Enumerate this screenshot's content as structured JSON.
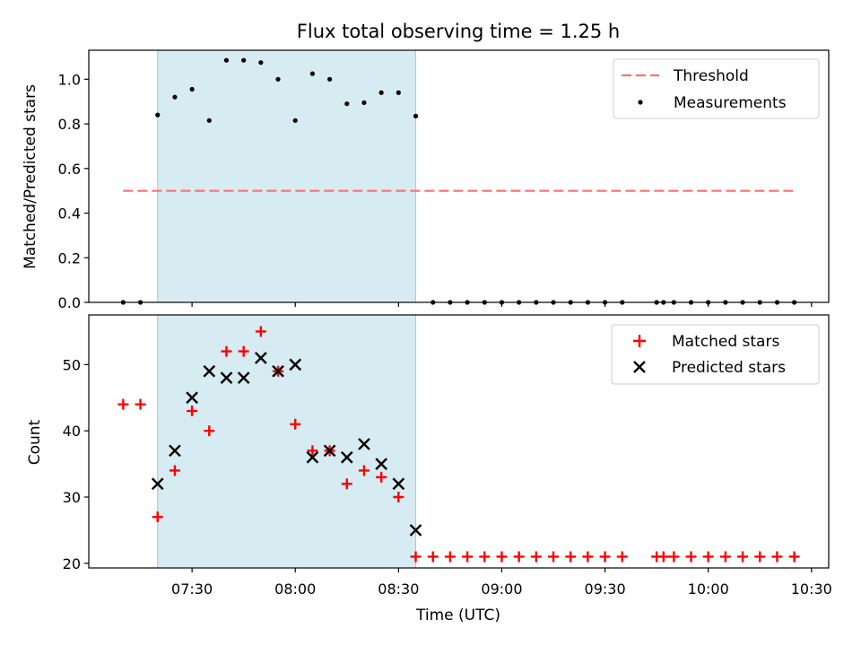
{
  "chart_data": [
    {
      "type": "scatter",
      "title": "Flux total observing time = 1.25 h",
      "xlabel": "",
      "ylabel": "Matched/Predicted stars",
      "ylim": [
        0,
        1.13
      ],
      "yticks": [
        0.0,
        0.2,
        0.4,
        0.6,
        0.8,
        1.0
      ],
      "ytick_labels": [
        "0.0",
        "0.2",
        "0.4",
        "0.6",
        "0.8",
        "1.0"
      ],
      "legend_position": "top-right",
      "shaded_region": {
        "x_start": "07:20",
        "x_end": "08:35"
      },
      "threshold": {
        "name": "Threshold",
        "value": 0.5,
        "x_start": "07:10",
        "x_end": "10:25",
        "color": "#ff6f6f"
      },
      "series": [
        {
          "name": "Measurements",
          "marker": "dot",
          "color": "#000000",
          "x": [
            "07:10",
            "07:15",
            "07:20",
            "07:25",
            "07:30",
            "07:35",
            "07:40",
            "07:45",
            "07:50",
            "07:55",
            "08:00",
            "08:05",
            "08:10",
            "08:15",
            "08:20",
            "08:25",
            "08:30",
            "08:35",
            "08:40",
            "08:45",
            "08:50",
            "08:55",
            "09:00",
            "09:05",
            "09:10",
            "09:15",
            "09:20",
            "09:25",
            "09:30",
            "09:35",
            "09:45",
            "09:47",
            "09:50",
            "09:55",
            "10:00",
            "10:05",
            "10:10",
            "10:15",
            "10:20",
            "10:25"
          ],
          "y": [
            0,
            0,
            0.84,
            0.92,
            0.955,
            0.815,
            1.085,
            1.085,
            1.075,
            1.0,
            0.815,
            1.025,
            1.0,
            0.89,
            0.895,
            0.94,
            0.94,
            0.835,
            0,
            0,
            0,
            0,
            0,
            0,
            0,
            0,
            0,
            0,
            0,
            0,
            0,
            0,
            0,
            0,
            0,
            0,
            0,
            0,
            0,
            0
          ]
        }
      ]
    },
    {
      "type": "scatter",
      "title": "",
      "xlabel": "Time (UTC)",
      "ylabel": "Count",
      "ylim": [
        19.3,
        57.5
      ],
      "yticks": [
        20,
        30,
        40,
        50
      ],
      "ytick_labels": [
        "20",
        "30",
        "40",
        "50"
      ],
      "xlim": [
        "07:00",
        "10:35"
      ],
      "xticks": [
        "07:30",
        "08:00",
        "08:30",
        "09:00",
        "09:30",
        "10:00",
        "10:30"
      ],
      "legend_position": "top-right",
      "shaded_region": {
        "x_start": "07:20",
        "x_end": "08:35"
      },
      "series": [
        {
          "name": "Matched stars",
          "marker": "plus",
          "color": "#ff0000",
          "x": [
            "07:10",
            "07:15",
            "07:20",
            "07:25",
            "07:30",
            "07:35",
            "07:40",
            "07:45",
            "07:50",
            "07:55",
            "08:00",
            "08:05",
            "08:10",
            "08:15",
            "08:20",
            "08:25",
            "08:30",
            "08:35",
            "08:40",
            "08:45",
            "08:50",
            "08:55",
            "09:00",
            "09:05",
            "09:10",
            "09:15",
            "09:20",
            "09:25",
            "09:30",
            "09:35",
            "09:45",
            "09:47",
            "09:50",
            "09:55",
            "10:00",
            "10:05",
            "10:10",
            "10:15",
            "10:20",
            "10:25"
          ],
          "y": [
            44,
            44,
            27,
            34,
            43,
            40,
            52,
            52,
            55,
            49,
            41,
            37,
            37,
            32,
            34,
            33,
            30,
            21,
            21,
            21,
            21,
            21,
            21,
            21,
            21,
            21,
            21,
            21,
            21,
            21,
            21,
            21,
            21,
            21,
            21,
            21,
            21,
            21,
            21,
            21
          ]
        },
        {
          "name": "Predicted stars",
          "marker": "x",
          "color": "#000000",
          "x": [
            "07:20",
            "07:25",
            "07:30",
            "07:35",
            "07:40",
            "07:45",
            "07:50",
            "07:55",
            "08:00",
            "08:05",
            "08:10",
            "08:15",
            "08:20",
            "08:25",
            "08:30",
            "08:35"
          ],
          "y": [
            32,
            37,
            45,
            49,
            48,
            48,
            51,
            49,
            50,
            36,
            37,
            36,
            38,
            35,
            32,
            25
          ]
        }
      ]
    }
  ]
}
